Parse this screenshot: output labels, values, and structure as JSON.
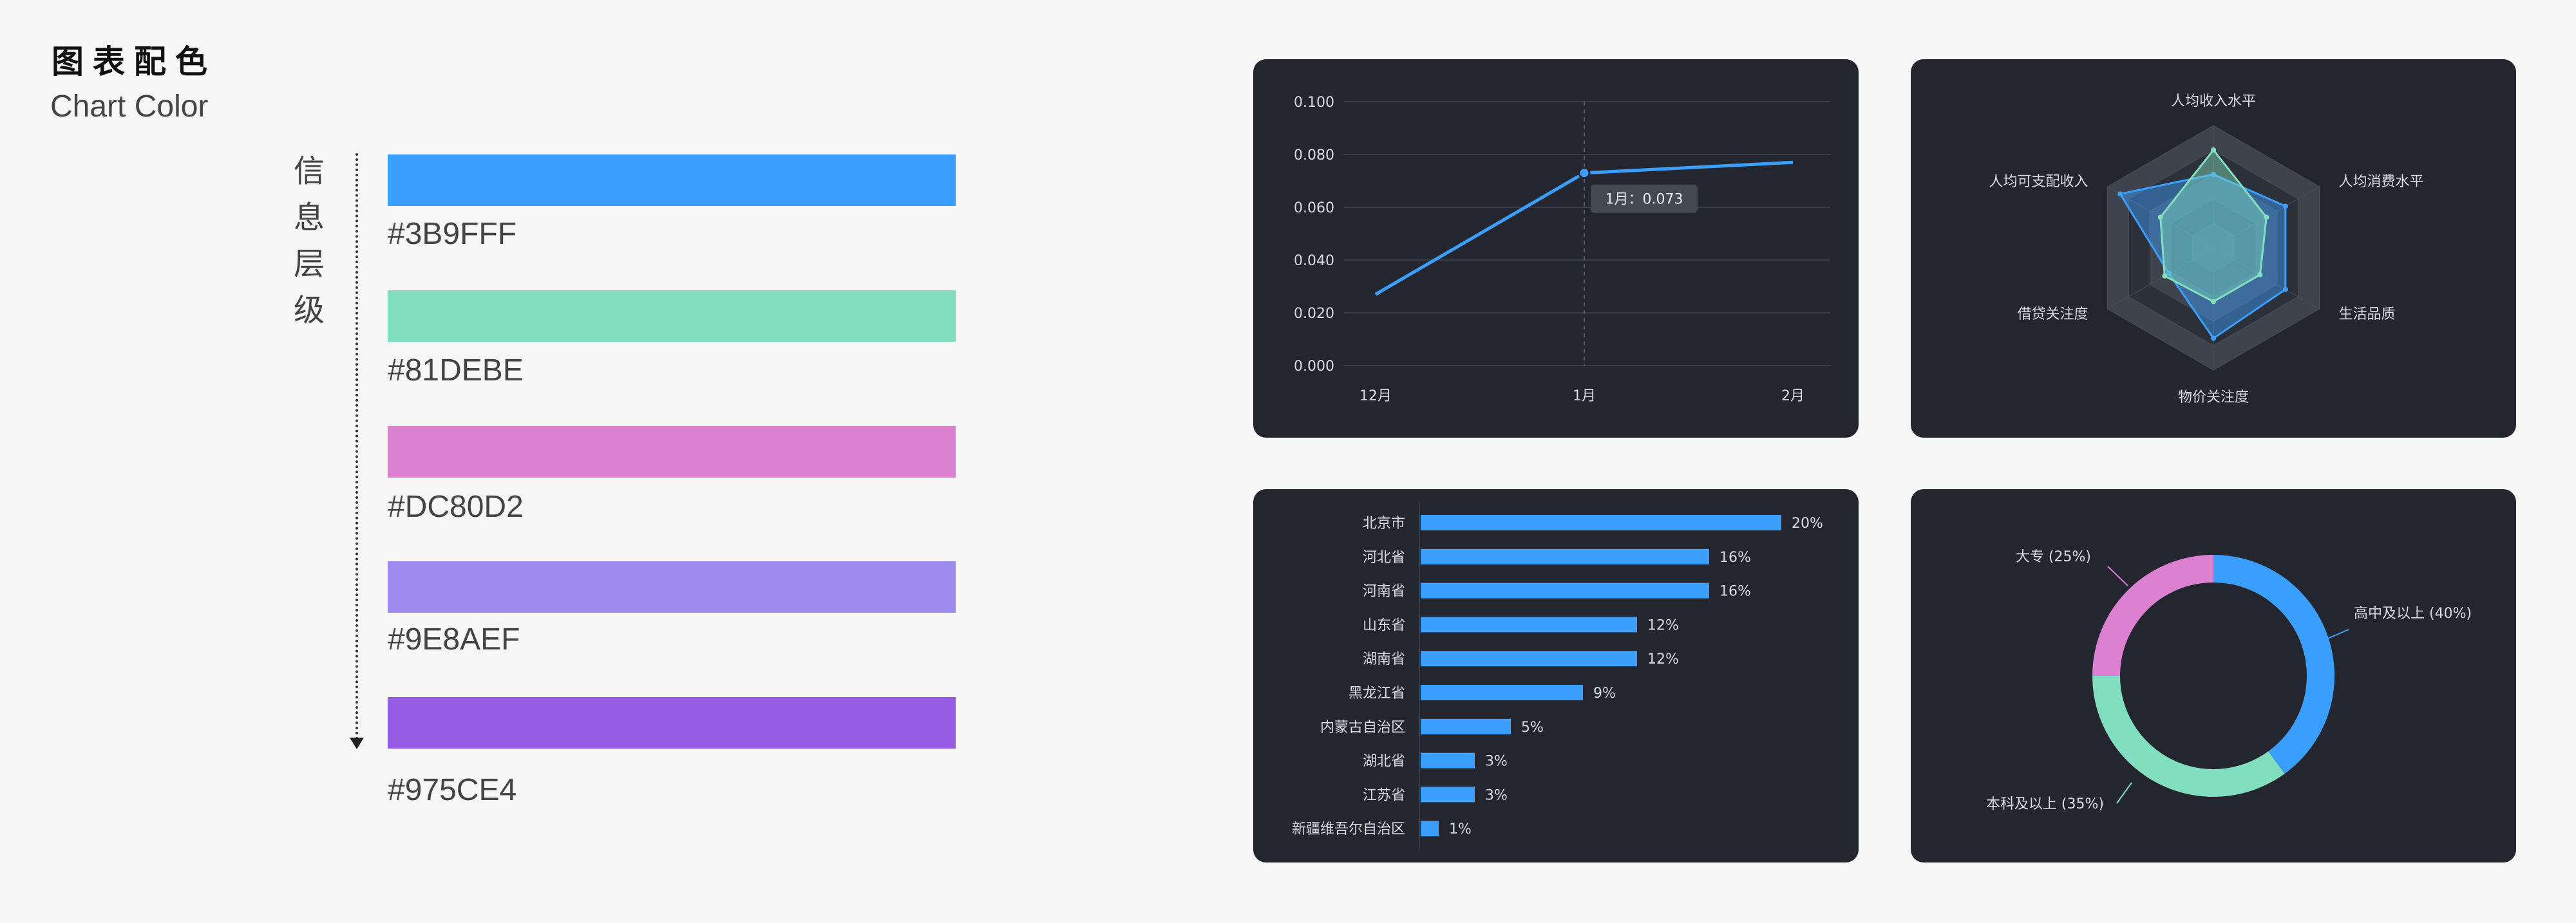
{
  "header": {
    "title_cn": "图表配色",
    "title_en": "Chart Color"
  },
  "hierarchy_label": [
    "信",
    "息",
    "层",
    "级"
  ],
  "palette": [
    {
      "hex": "#3B9FFF",
      "color": "#3B9FFF"
    },
    {
      "hex": "#81DEBE",
      "color": "#81DEBE"
    },
    {
      "hex": "#DC80D2",
      "color": "#DC80D2"
    },
    {
      "hex": "#9E8AEF",
      "color": "#9E8AEF"
    },
    {
      "hex": "#975CE4",
      "color": "#975CE4"
    }
  ],
  "theme": {
    "panel_bg": "#23262E",
    "grid": "#3A3E48",
    "text": "#D8DAE0",
    "primary": "#3B9FFF",
    "secondary": "#81DEBE",
    "tertiary": "#DC80D2"
  },
  "chart_data": [
    {
      "type": "line",
      "categories": [
        "12月",
        "1月",
        "2月"
      ],
      "series": [
        {
          "values": [
            0.027,
            0.073,
            0.077
          ]
        }
      ],
      "y_ticks": [
        "0.000",
        "0.020",
        "0.040",
        "0.060",
        "0.080",
        "0.100"
      ],
      "ylim": [
        0,
        0.1
      ],
      "grid": true,
      "tooltip": "1月：0.073"
    },
    {
      "type": "radar",
      "indicators": [
        "人均收入水平",
        "人均消费水平",
        "生活品质",
        "物价关注度",
        "借贷关注度",
        "人均可支配收入"
      ],
      "max": 100,
      "series": [
        {
          "color": "#3B9FFF",
          "values": [
            60,
            68,
            68,
            74,
            42,
            88
          ]
        },
        {
          "color": "#81DEBE",
          "values": [
            80,
            50,
            44,
            44,
            46,
            50
          ]
        }
      ]
    },
    {
      "type": "bar",
      "orientation": "horizontal",
      "categories": [
        "北京市",
        "河北省",
        "河南省",
        "山东省",
        "湖南省",
        "黑龙江省",
        "内蒙古自治区",
        "湖北省",
        "江苏省",
        "新疆维吾尔自治区"
      ],
      "values": [
        20,
        16,
        16,
        12,
        12,
        9,
        5,
        3,
        3,
        1
      ],
      "labels": [
        "20%",
        "16%",
        "16%",
        "12%",
        "12%",
        "9%",
        "5%",
        "3%",
        "3%",
        "1%"
      ],
      "xlim": [
        0,
        20
      ]
    },
    {
      "type": "pie",
      "variant": "donut",
      "slices": [
        {
          "label": "高中及以上 (40%)",
          "value": 40,
          "color": "#3B9FFF"
        },
        {
          "label": "本科及以上 (35%)",
          "value": 35,
          "color": "#81DEBE"
        },
        {
          "label": "大专 (25%)",
          "value": 25,
          "color": "#DC80D2"
        }
      ]
    }
  ]
}
